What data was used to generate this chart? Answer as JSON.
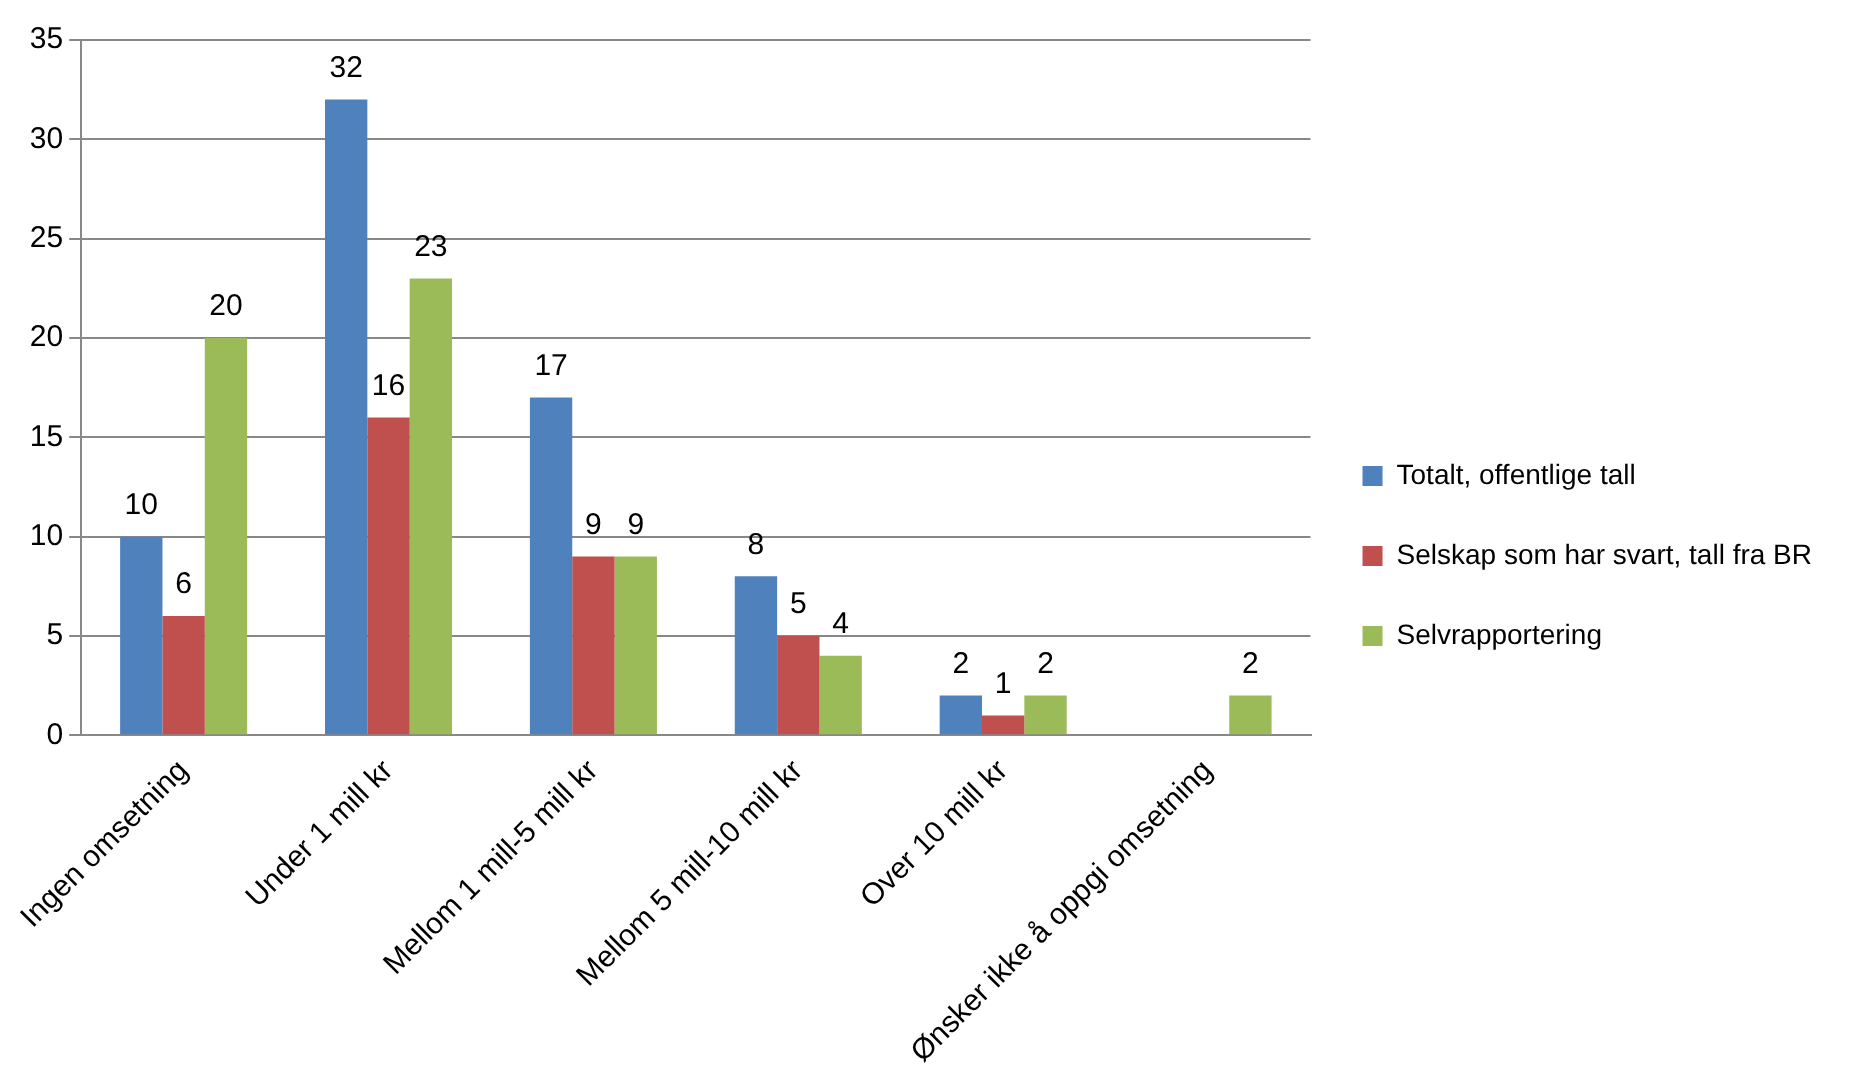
{
  "chart_data": {
    "type": "bar",
    "categories": [
      "Ingen omsetning",
      "Under 1 mill kr",
      "Mellom 1 mill-5 mill kr",
      "Mellom 5 mill-10 mill kr",
      "Over 10 mill kr",
      "Ønsker ikke å oppgi omsetning"
    ],
    "series": [
      {
        "name": "Totalt, offentlige tall",
        "color": "#4f81bd",
        "values": [
          10,
          32,
          17,
          8,
          2,
          null
        ]
      },
      {
        "name": "Selskap som har svart, tall fra BR",
        "color": "#c0504d",
        "values": [
          6,
          16,
          9,
          5,
          1,
          null
        ]
      },
      {
        "name": "Selvrapportering",
        "color": "#9bbb59",
        "values": [
          20,
          23,
          9,
          4,
          2,
          2
        ]
      }
    ],
    "ylim": [
      0,
      35
    ],
    "yticks": [
      0,
      5,
      10,
      15,
      20,
      25,
      30,
      35
    ],
    "grid": "y",
    "legend": "right",
    "data_labels": true
  }
}
